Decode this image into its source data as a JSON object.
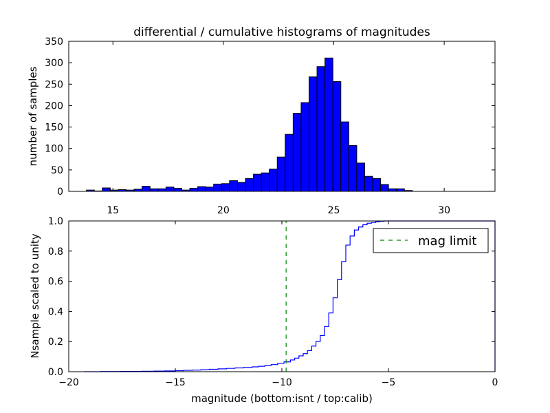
{
  "chart_data": [
    {
      "type": "bar",
      "title": "differential / cumulative histograms of magnitudes",
      "xlabel": "",
      "ylabel": "number of samples",
      "xlim": [
        13.0,
        32.3
      ],
      "ylim": [
        0,
        350
      ],
      "xticks": [
        "15",
        "20",
        "25",
        "30"
      ],
      "yticks": [
        "0",
        "50",
        "100",
        "150",
        "200",
        "250",
        "300",
        "350"
      ],
      "x_tick_position": "bottom-outside",
      "bar_color": "#0000ff",
      "bin_width": 0.36,
      "bin_start": 13.8,
      "values": [
        3,
        1,
        8,
        3,
        4,
        3,
        5,
        12,
        6,
        6,
        10,
        7,
        3,
        7,
        11,
        10,
        17,
        18,
        25,
        21,
        30,
        40,
        43,
        52,
        80,
        133,
        182,
        207,
        267,
        291,
        311,
        256,
        162,
        107,
        66,
        35,
        30,
        16,
        6,
        6,
        2,
        0,
        0,
        0,
        0,
        0,
        0,
        0,
        0,
        0,
        0,
        0,
        0,
        0
      ]
    },
    {
      "type": "line",
      "xlabel": "magnitude (bottom:isnt / top:calib)",
      "ylabel": "Nsample scaled to unity",
      "xlim": [
        -20,
        0
      ],
      "ylim": [
        0,
        1.0
      ],
      "xticks": [
        "−20",
        "−15",
        "−10",
        "−5",
        "0"
      ],
      "yticks": [
        "0.0",
        "0.2",
        "0.4",
        "0.6",
        "0.8",
        "1.0"
      ],
      "series": [
        {
          "color": "#0000ff",
          "style": "steps",
          "x": [
            -19.3,
            -18.5,
            -17.6,
            -16.6,
            -16.0,
            -15.5,
            -15.0,
            -14.6,
            -14.2,
            -13.8,
            -13.4,
            -13.0,
            -12.6,
            -12.2,
            -11.8,
            -11.4,
            -11.1,
            -10.8,
            -10.5,
            -10.2,
            -9.9,
            -9.6,
            -9.4,
            -9.2,
            -9.0,
            -8.8,
            -8.6,
            -8.4,
            -8.2,
            -8.0,
            -7.8,
            -7.6,
            -7.4,
            -7.2,
            -7.0,
            -6.8,
            -6.6,
            -6.4,
            -6.2,
            -6.0,
            -5.8,
            -5.6,
            -5.4,
            -5.2,
            -4.0,
            -2.0,
            -0.1
          ],
          "y": [
            0.0,
            0.001,
            0.002,
            0.003,
            0.004,
            0.005,
            0.007,
            0.009,
            0.011,
            0.013,
            0.016,
            0.019,
            0.022,
            0.025,
            0.028,
            0.032,
            0.036,
            0.041,
            0.047,
            0.055,
            0.065,
            0.078,
            0.09,
            0.105,
            0.12,
            0.14,
            0.17,
            0.2,
            0.24,
            0.3,
            0.39,
            0.49,
            0.61,
            0.73,
            0.84,
            0.9,
            0.94,
            0.96,
            0.975,
            0.985,
            0.99,
            0.995,
            0.998,
            1.0,
            1.0,
            1.0,
            1.0
          ]
        },
        {
          "name": "mag limit",
          "color": "#008000",
          "style": "dashed",
          "x": [
            -9.8,
            -9.8
          ],
          "y": [
            0,
            1.0
          ]
        }
      ],
      "legend_position": "top-right"
    }
  ]
}
